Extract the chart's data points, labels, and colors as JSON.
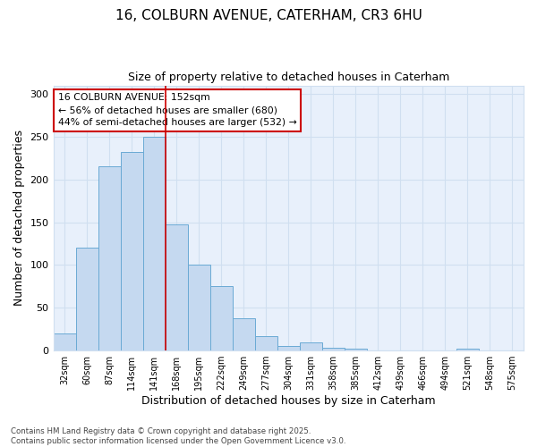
{
  "title_line1": "16, COLBURN AVENUE, CATERHAM, CR3 6HU",
  "title_line2": "Size of property relative to detached houses in Caterham",
  "xlabel": "Distribution of detached houses by size in Caterham",
  "ylabel": "Number of detached properties",
  "categories": [
    "32sqm",
    "60sqm",
    "87sqm",
    "114sqm",
    "141sqm",
    "168sqm",
    "195sqm",
    "222sqm",
    "249sqm",
    "277sqm",
    "304sqm",
    "331sqm",
    "358sqm",
    "385sqm",
    "412sqm",
    "439sqm",
    "466sqm",
    "494sqm",
    "521sqm",
    "548sqm",
    "575sqm"
  ],
  "values": [
    20,
    120,
    215,
    232,
    250,
    148,
    100,
    75,
    38,
    17,
    5,
    10,
    3,
    2,
    0,
    0,
    0,
    0,
    2,
    0,
    0
  ],
  "bar_color": "#c5d9f0",
  "bar_edge_color": "#6aaad4",
  "grid_color": "#d0dff0",
  "background_color": "#ffffff",
  "plot_bg_color": "#e8f0fb",
  "annotation_box_color": "#cc0000",
  "vline_color": "#cc0000",
  "vline_x_index": 4,
  "annotation_text_line1": "16 COLBURN AVENUE: 152sqm",
  "annotation_text_line2": "← 56% of detached houses are smaller (680)",
  "annotation_text_line3": "44% of semi-detached houses are larger (532) →",
  "footnote_line1": "Contains HM Land Registry data © Crown copyright and database right 2025.",
  "footnote_line2": "Contains public sector information licensed under the Open Government Licence v3.0.",
  "ylim": [
    0,
    310
  ],
  "yticks": [
    0,
    50,
    100,
    150,
    200,
    250,
    300
  ]
}
